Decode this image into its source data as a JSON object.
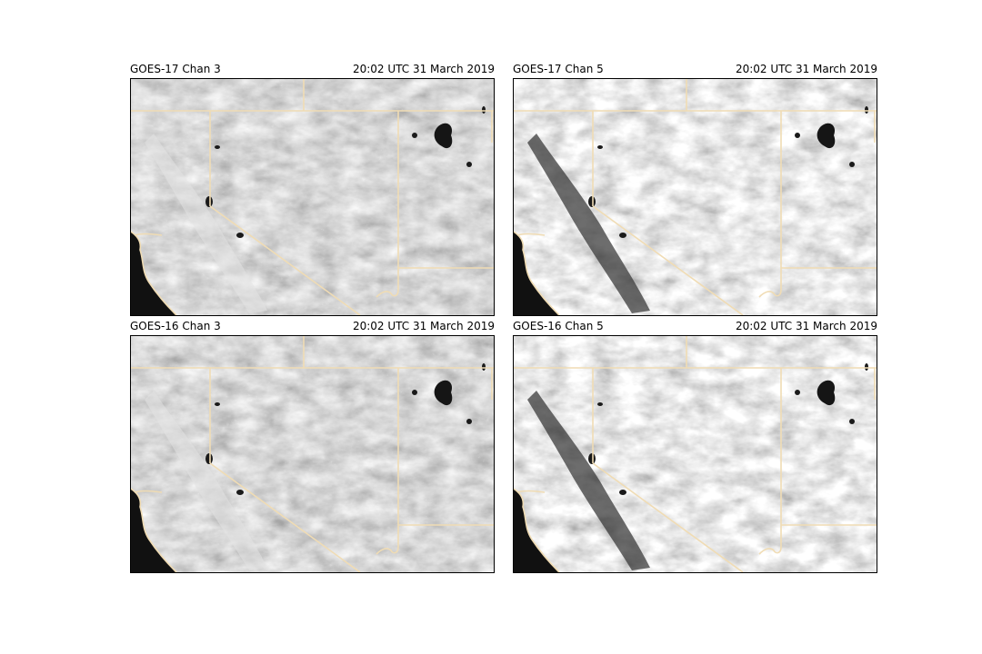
{
  "panels": [
    {
      "title": "GOES-17 Chan 3",
      "time": "20:02 UTC 31 March 2019",
      "channel": 3
    },
    {
      "title": "GOES-17 Chan 5",
      "time": "20:02 UTC 31 March 2019",
      "channel": 5
    },
    {
      "title": "GOES-16 Chan 3",
      "time": "20:02 UTC 31 March 2019",
      "channel": 3
    },
    {
      "title": "GOES-16 Chan 5",
      "time": "20:02 UTC 31 March 2019",
      "channel": 5
    }
  ],
  "colors": {
    "border_line": "#f0dcb4",
    "ocean": "#111111",
    "land_base": "#8a8a8a",
    "frame": "#000000"
  }
}
